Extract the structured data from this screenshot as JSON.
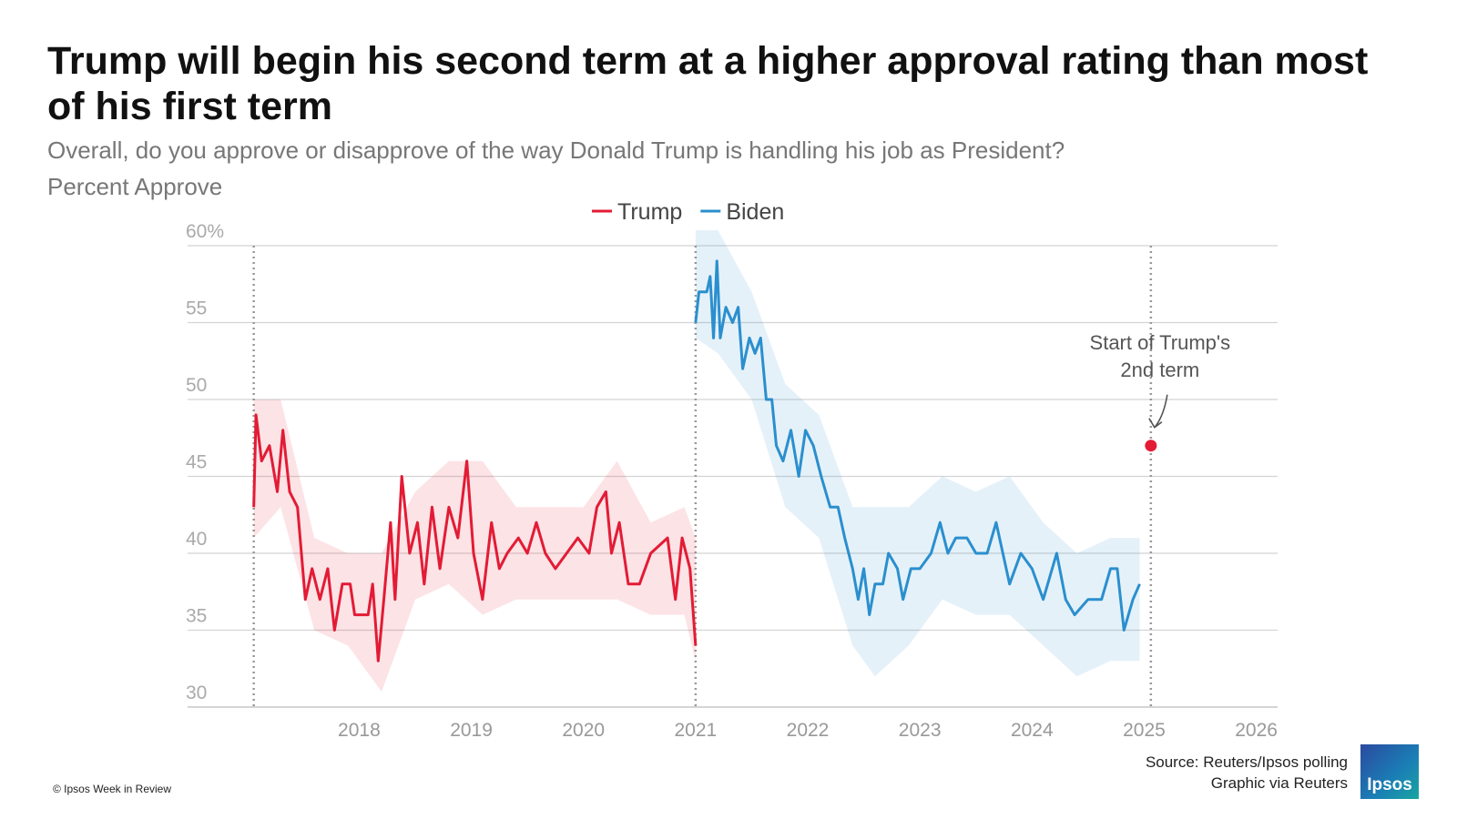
{
  "chart_data": {
    "type": "line",
    "title": "Trump will begin his second term at a higher approval rating than most of his first term",
    "subtitle": "Overall, do you approve or disapprove of the way Donald Trump is handling his job as President?",
    "y_label": "Percent Approve",
    "source": "Source: Reuters/Ipsos polling",
    "credit": "Graphic via Reuters",
    "copyright": "© Ipsos Week in Review",
    "logo": "Ipsos",
    "xlim": [
      2016.47,
      2026.19
    ],
    "xticks": [
      2018,
      2019,
      2020,
      2021,
      2022,
      2023,
      2024,
      2025,
      2026
    ],
    "ylim": [
      30,
      60
    ],
    "yticks": [
      30,
      35,
      40,
      45,
      50,
      55,
      {
        "value": 60,
        "label": "60%"
      }
    ],
    "grid": true,
    "legend": "top",
    "reference_lines": [
      2017.06,
      2021.0,
      2025.06
    ],
    "annotation": {
      "lines": [
        "Start of Trump's",
        "2nd term"
      ],
      "x": 2025.06,
      "y": 47,
      "color": "#e31b35"
    },
    "series": [
      {
        "name": "Trump",
        "color": "#e31b35",
        "x": [
          2017.06,
          2017.08,
          2017.13,
          2017.2,
          2017.27,
          2017.32,
          2017.38,
          2017.45,
          2017.52,
          2017.58,
          2017.65,
          2017.72,
          2017.78,
          2017.85,
          2017.92,
          2017.96,
          2018.08,
          2018.12,
          2018.17,
          2018.22,
          2018.28,
          2018.32,
          2018.38,
          2018.45,
          2018.52,
          2018.58,
          2018.65,
          2018.72,
          2018.8,
          2018.88,
          2018.96,
          2019.02,
          2019.1,
          2019.18,
          2019.25,
          2019.32,
          2019.42,
          2019.5,
          2019.58,
          2019.66,
          2019.75,
          2019.85,
          2019.95,
          2020.05,
          2020.12,
          2020.2,
          2020.25,
          2020.32,
          2020.4,
          2020.5,
          2020.6,
          2020.75,
          2020.82,
          2020.88,
          2020.95,
          2021.0
        ],
        "values": [
          43,
          49,
          46,
          47,
          44,
          48,
          44,
          43,
          37,
          39,
          37,
          39,
          35,
          38,
          38,
          36,
          36,
          38,
          33,
          37,
          42,
          37,
          45,
          40,
          42,
          38,
          43,
          39,
          43,
          41,
          46,
          40,
          37,
          42,
          39,
          40,
          41,
          40,
          42,
          40,
          39,
          40,
          41,
          40,
          43,
          44,
          40,
          42,
          38,
          38,
          40,
          41,
          37,
          41,
          39,
          34
        ],
        "band": {
          "x": [
            2017.06,
            2017.3,
            2017.6,
            2017.9,
            2018.2,
            2018.5,
            2018.8,
            2019.1,
            2019.4,
            2019.7,
            2020.0,
            2020.3,
            2020.6,
            2020.9,
            2021.0
          ],
          "lower": [
            41,
            43,
            35,
            34,
            31,
            37,
            38,
            36,
            37,
            37,
            37,
            37,
            36,
            36,
            33
          ],
          "upper": [
            50,
            50,
            41,
            40,
            40,
            44,
            46,
            46,
            43,
            43,
            43,
            46,
            42,
            43,
            41
          ]
        }
      },
      {
        "name": "Biden",
        "color": "#2a8fce",
        "x": [
          2021.0,
          2021.03,
          2021.1,
          2021.13,
          2021.16,
          2021.19,
          2021.22,
          2021.27,
          2021.33,
          2021.38,
          2021.42,
          2021.48,
          2021.53,
          2021.58,
          2021.63,
          2021.68,
          2021.72,
          2021.78,
          2021.85,
          2021.92,
          2021.98,
          2022.05,
          2022.12,
          2022.2,
          2022.27,
          2022.33,
          2022.4,
          2022.45,
          2022.5,
          2022.55,
          2022.6,
          2022.67,
          2022.72,
          2022.8,
          2022.85,
          2022.92,
          2023.0,
          2023.1,
          2023.18,
          2023.25,
          2023.32,
          2023.42,
          2023.5,
          2023.6,
          2023.68,
          2023.8,
          2023.9,
          2024.0,
          2024.1,
          2024.22,
          2024.3,
          2024.38,
          2024.5,
          2024.62,
          2024.7,
          2024.76,
          2024.82,
          2024.9,
          2024.96
        ],
        "values": [
          55,
          57,
          57,
          58,
          54,
          59,
          54,
          56,
          55,
          56,
          52,
          54,
          53,
          54,
          50,
          50,
          47,
          46,
          48,
          45,
          48,
          47,
          45,
          43,
          43,
          41,
          39,
          37,
          39,
          36,
          38,
          38,
          40,
          39,
          37,
          39,
          39,
          40,
          42,
          40,
          41,
          41,
          40,
          40,
          42,
          38,
          40,
          39,
          37,
          40,
          37,
          36,
          37,
          37,
          39,
          39,
          35,
          37,
          38
        ],
        "band": {
          "x": [
            2021.0,
            2021.2,
            2021.5,
            2021.8,
            2022.1,
            2022.4,
            2022.6,
            2022.9,
            2023.2,
            2023.5,
            2023.8,
            2024.1,
            2024.4,
            2024.7,
            2024.96
          ],
          "lower": [
            54,
            53,
            50,
            43,
            41,
            34,
            32,
            34,
            37,
            36,
            36,
            34,
            32,
            33,
            33
          ],
          "upper": [
            61,
            61,
            57,
            51,
            49,
            43,
            43,
            43,
            45,
            44,
            45,
            42,
            40,
            41,
            41
          ]
        }
      }
    ]
  }
}
